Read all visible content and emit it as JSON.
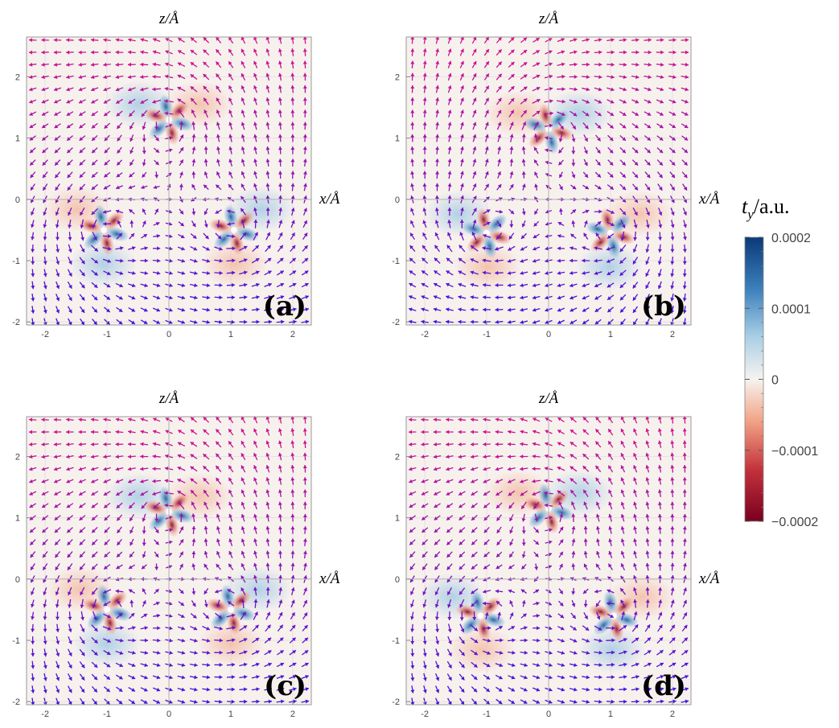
{
  "chart_data": [
    {
      "type": "heatmap",
      "panel_label": "(a)",
      "xlabel": "x/Å",
      "ylabel": "z/Å",
      "xlim": [
        -2.3,
        2.3
      ],
      "ylim": [
        -2.05,
        2.65
      ],
      "xticks": [
        "-2",
        "-1",
        "0",
        "1",
        "2"
      ],
      "yticks": [
        "-2",
        "-1",
        "0",
        "1",
        "2"
      ],
      "atoms": [
        {
          "x": 0.0,
          "z": 1.3,
          "sign": 1
        },
        {
          "x": -1.05,
          "z": -0.5,
          "sign": 1
        },
        {
          "x": 1.05,
          "z": -0.5,
          "sign": 1
        }
      ],
      "vector_field": "quiver arrows (red to blue)"
    },
    {
      "type": "heatmap",
      "panel_label": "(b)",
      "xlabel": "x/Å",
      "ylabel": "z/Å",
      "xlim": [
        -2.3,
        2.3
      ],
      "ylim": [
        -2.05,
        2.65
      ],
      "xticks": [
        "-2",
        "-1",
        "0",
        "1",
        "2"
      ],
      "yticks": [
        "-2",
        "-1",
        "0",
        "1",
        "2"
      ],
      "atoms": [
        {
          "x": 0.0,
          "z": 1.15,
          "sign": -1
        },
        {
          "x": -1.0,
          "z": -0.55,
          "sign": -1
        },
        {
          "x": 1.0,
          "z": -0.55,
          "sign": -1
        }
      ],
      "vector_field": "quiver arrows (red to blue)"
    },
    {
      "type": "heatmap",
      "panel_label": "(c)",
      "xlabel": "x/Å",
      "ylabel": "z/Å",
      "xlim": [
        -2.3,
        2.3
      ],
      "ylim": [
        -2.05,
        2.65
      ],
      "xticks": [
        "-2",
        "-1",
        "0",
        "1",
        "2"
      ],
      "yticks": [
        "-2",
        "-1",
        "0",
        "1",
        "2"
      ],
      "atoms": [
        {
          "x": 0.0,
          "z": 1.1,
          "sign": 1
        },
        {
          "x": -1.0,
          "z": -0.5,
          "sign": 1
        },
        {
          "x": 1.0,
          "z": -0.5,
          "sign": 1
        }
      ],
      "vector_field": "quiver arrows (red to blue)"
    },
    {
      "type": "heatmap",
      "panel_label": "(d)",
      "xlabel": "x/Å",
      "ylabel": "z/Å",
      "xlim": [
        -2.3,
        2.3
      ],
      "ylim": [
        -2.05,
        2.65
      ],
      "xticks": [
        "-2",
        "-1",
        "0",
        "1",
        "2"
      ],
      "yticks": [
        "-2",
        "-1",
        "0",
        "1",
        "2"
      ],
      "atoms": [
        {
          "x": 0.0,
          "z": 1.15,
          "sign": 1
        },
        {
          "x": -1.1,
          "z": -0.6,
          "sign": 1
        },
        {
          "x": 1.05,
          "z": -0.6,
          "sign": 1
        }
      ],
      "vector_field": "quiver arrows (red to blue)"
    }
  ],
  "colorbar": {
    "title": "t_y/a.u.",
    "min": -0.0002,
    "max": 0.0002,
    "ticks": [
      "0.0002",
      "0.0001",
      "0",
      "−0.0001",
      "−0.0002"
    ],
    "colors": [
      "#0b3a78",
      "#3f82be",
      "#cfe4f1",
      "#f7f4f0",
      "#f5c6ad",
      "#d04437",
      "#7a0020"
    ]
  }
}
